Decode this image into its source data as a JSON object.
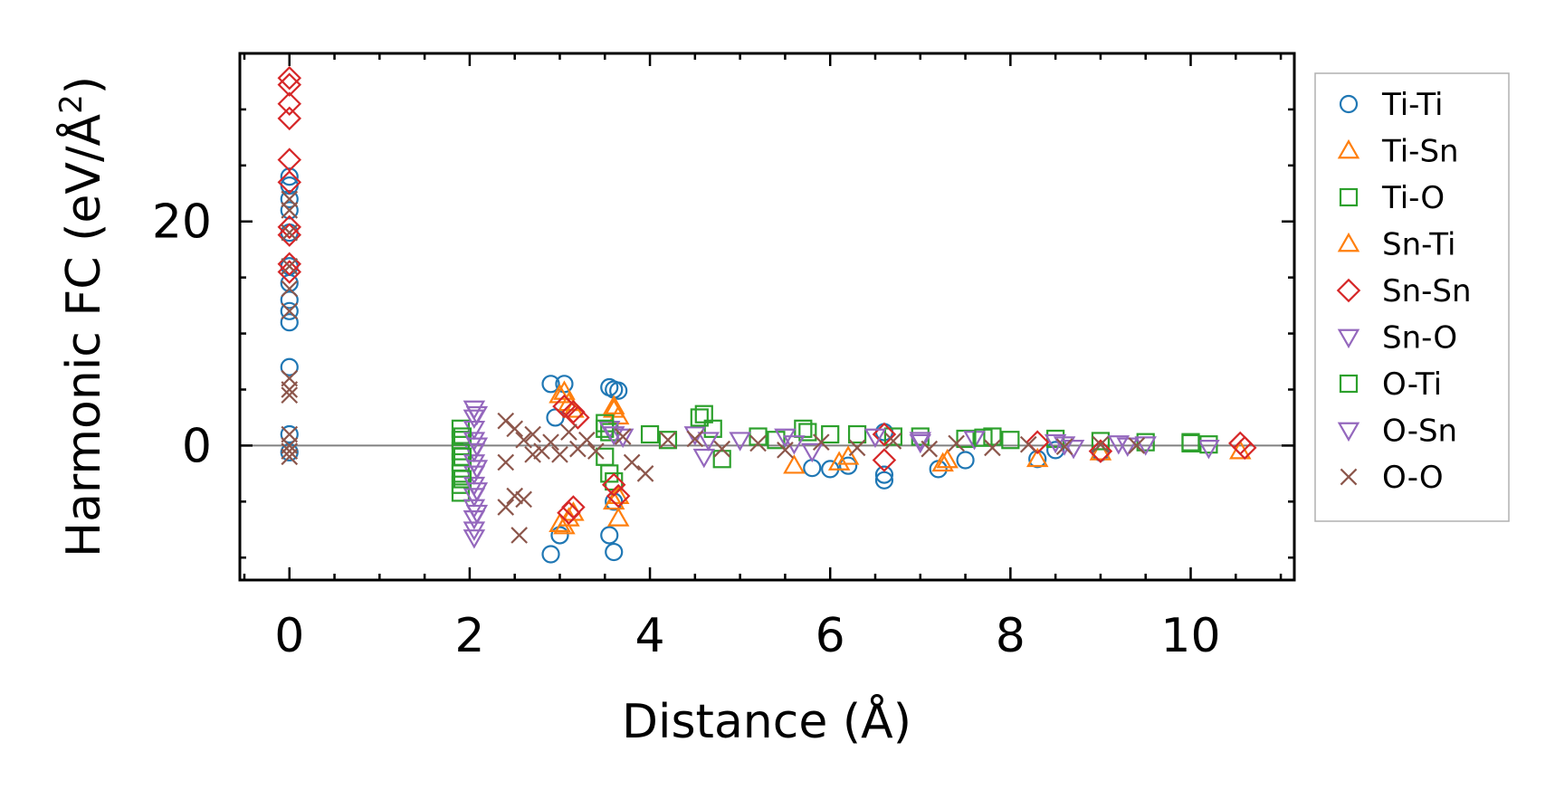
{
  "chart_data": {
    "type": "scatter",
    "title": "",
    "xlabel": "Distance (Å)",
    "ylabel_main": "Harmonic FC (eV/Å",
    "ylabel_sup": "2",
    "ylabel_close": ")",
    "xlim": [
      -0.55,
      11.15
    ],
    "ylim": [
      -12,
      35
    ],
    "xticks": [
      0,
      2,
      4,
      6,
      8,
      10
    ],
    "xtick_labels": [
      "0",
      "2",
      "4",
      "6",
      "8",
      "10"
    ],
    "yticks": [
      0,
      20
    ],
    "ytick_labels": [
      "0",
      "20"
    ],
    "grid": false,
    "zero_line": true,
    "legend_position": "outside-right",
    "series": [
      {
        "name": "Ti-Ti",
        "marker": "circle",
        "color": "#1f77b4",
        "points": [
          [
            0,
            24
          ],
          [
            0,
            23.2
          ],
          [
            0,
            22
          ],
          [
            0,
            21
          ],
          [
            0,
            19
          ],
          [
            0,
            16
          ],
          [
            0,
            14.5
          ],
          [
            0,
            13
          ],
          [
            0,
            12
          ],
          [
            0,
            11
          ],
          [
            0,
            7
          ],
          [
            0,
            1
          ],
          [
            0,
            -0.6
          ],
          [
            2.9,
            5.5
          ],
          [
            3.05,
            5.5
          ],
          [
            2.95,
            2.5
          ],
          [
            3.0,
            -8
          ],
          [
            2.9,
            -9.7
          ],
          [
            3.55,
            5.2
          ],
          [
            3.6,
            5.0
          ],
          [
            3.65,
            4.9
          ],
          [
            3.6,
            -5
          ],
          [
            3.55,
            -8
          ],
          [
            3.6,
            -9.5
          ],
          [
            5.8,
            -2
          ],
          [
            6.0,
            -2.1
          ],
          [
            6.2,
            -1.8
          ],
          [
            6.6,
            -2.6
          ],
          [
            6.6,
            -3.1
          ],
          [
            6.6,
            1.2
          ],
          [
            7.2,
            -2.1
          ],
          [
            7.5,
            -1.3
          ],
          [
            8.3,
            -1.2
          ],
          [
            8.5,
            -0.4
          ],
          [
            9.0,
            -0.6
          ]
        ]
      },
      {
        "name": "Ti-Sn",
        "marker": "triangle-up",
        "color": "#ff7f0e",
        "points": [
          [
            3.0,
            4.5
          ],
          [
            3.1,
            3.8
          ],
          [
            3.15,
            3.2
          ],
          [
            3.0,
            -7
          ],
          [
            3.1,
            -6.5
          ],
          [
            3.15,
            -6
          ],
          [
            3.6,
            3.2
          ],
          [
            3.65,
            2.6
          ],
          [
            3.6,
            -5
          ],
          [
            3.65,
            -6.5
          ],
          [
            5.6,
            -1.8
          ],
          [
            6.1,
            -1.5
          ],
          [
            7.25,
            -1.6
          ],
          [
            8.3,
            -1.2
          ],
          [
            9.0,
            -0.6
          ],
          [
            10.55,
            -0.5
          ]
        ]
      },
      {
        "name": "Ti-O",
        "marker": "square",
        "color": "#2ca02c",
        "points": [
          [
            1.9,
            1.5
          ],
          [
            1.9,
            0.5
          ],
          [
            1.9,
            -0.5
          ],
          [
            1.9,
            -1.5
          ],
          [
            1.9,
            -2.5
          ],
          [
            1.9,
            -3.5
          ],
          [
            1.9,
            -4.2
          ],
          [
            3.5,
            2.0
          ],
          [
            3.55,
            1.2
          ],
          [
            3.5,
            -1
          ],
          [
            3.55,
            -2.5
          ],
          [
            3.6,
            -3.2
          ],
          [
            4.0,
            1.0
          ],
          [
            4.2,
            0.5
          ],
          [
            4.6,
            2.8
          ],
          [
            4.7,
            1.5
          ],
          [
            4.8,
            -1.2
          ],
          [
            5.2,
            0.8
          ],
          [
            5.4,
            0.5
          ],
          [
            5.7,
            1.5
          ],
          [
            6.0,
            1.0
          ],
          [
            6.3,
            1.0
          ],
          [
            6.7,
            0.8
          ],
          [
            7.0,
            0.8
          ],
          [
            7.5,
            0.6
          ],
          [
            7.8,
            0.8
          ],
          [
            8.0,
            0.5
          ],
          [
            8.5,
            0.6
          ],
          [
            9.0,
            0.4
          ],
          [
            9.5,
            0.3
          ],
          [
            10.0,
            0.2
          ],
          [
            10.2,
            0.1
          ]
        ]
      },
      {
        "name": "Sn-Ti",
        "marker": "triangle-up",
        "color": "#ff7f0e",
        "points": [
          [
            3.05,
            4.8
          ],
          [
            3.6,
            3.5
          ],
          [
            3.65,
            -4.5
          ],
          [
            3.05,
            -7.2
          ],
          [
            6.2,
            -1.0
          ],
          [
            7.3,
            -1.3
          ]
        ]
      },
      {
        "name": "Sn-Sn",
        "marker": "diamond",
        "color": "#d62728",
        "points": [
          [
            0,
            32.8
          ],
          [
            0,
            32.2
          ],
          [
            0,
            30.5
          ],
          [
            0,
            29.2
          ],
          [
            0,
            25.5
          ],
          [
            0,
            23.5
          ],
          [
            0,
            19.5
          ],
          [
            0,
            18.8
          ],
          [
            0,
            16.2
          ],
          [
            0,
            15.5
          ],
          [
            3.05,
            3.5
          ],
          [
            3.15,
            3.0
          ],
          [
            3.2,
            2.5
          ],
          [
            3.1,
            -6.0
          ],
          [
            3.15,
            -5.5
          ],
          [
            3.6,
            -3.5
          ],
          [
            3.65,
            -4.5
          ],
          [
            6.6,
            1.0
          ],
          [
            6.6,
            -1.3
          ],
          [
            8.3,
            0.3
          ],
          [
            9.0,
            -0.5
          ],
          [
            10.55,
            0.2
          ],
          [
            10.6,
            -0.2
          ]
        ]
      },
      {
        "name": "Sn-O",
        "marker": "triangle-down",
        "color": "#9467bd",
        "points": [
          [
            2.05,
            3.3
          ],
          [
            2.05,
            2.5
          ],
          [
            2.05,
            1.5
          ],
          [
            2.05,
            0.5
          ],
          [
            2.05,
            -0.5
          ],
          [
            2.05,
            -1.5
          ],
          [
            2.05,
            -2.5
          ],
          [
            2.05,
            -3.5
          ],
          [
            2.05,
            -4.5
          ],
          [
            2.05,
            -5.5
          ],
          [
            2.05,
            -6.5
          ],
          [
            2.05,
            -7.5
          ],
          [
            2.05,
            -8.2
          ],
          [
            3.55,
            1.5
          ],
          [
            3.7,
            0.8
          ],
          [
            4.5,
            1.0
          ],
          [
            4.6,
            -1.0
          ],
          [
            5.0,
            0.5
          ],
          [
            5.5,
            0.8
          ],
          [
            5.8,
            -0.5
          ],
          [
            6.5,
            0.8
          ],
          [
            7.0,
            0.5
          ],
          [
            7.6,
            0.6
          ],
          [
            8.5,
            0.3
          ],
          [
            8.7,
            -0.2
          ],
          [
            9.2,
            0.2
          ],
          [
            9.5,
            0.1
          ],
          [
            10.2,
            -0.2
          ]
        ]
      },
      {
        "name": "O-Ti",
        "marker": "square",
        "color": "#2ca02c",
        "points": [
          [
            1.92,
            0.8
          ],
          [
            1.92,
            -1.0
          ],
          [
            1.92,
            -3.0
          ],
          [
            3.5,
            1.5
          ],
          [
            4.55,
            2.5
          ],
          [
            5.75,
            1.2
          ],
          [
            7.7,
            0.7
          ],
          [
            10.0,
            0.3
          ]
        ]
      },
      {
        "name": "O-Sn",
        "marker": "triangle-down",
        "color": "#9467bd",
        "points": [
          [
            2.08,
            2.8
          ],
          [
            2.08,
            0.0
          ],
          [
            2.08,
            -2.0
          ],
          [
            2.08,
            -4.0
          ],
          [
            2.08,
            -6.0
          ],
          [
            3.6,
            1.0
          ],
          [
            4.65,
            0.5
          ],
          [
            5.6,
            0.2
          ],
          [
            7.0,
            0.3
          ],
          [
            8.6,
            0.1
          ],
          [
            9.3,
            0.0
          ]
        ]
      },
      {
        "name": "O-O",
        "marker": "x",
        "color": "#8c564b",
        "points": [
          [
            0,
            22
          ],
          [
            0,
            21
          ],
          [
            0,
            19
          ],
          [
            0,
            16
          ],
          [
            0,
            14
          ],
          [
            0,
            12
          ],
          [
            0,
            6
          ],
          [
            0,
            5
          ],
          [
            0,
            4.5
          ],
          [
            0,
            1
          ],
          [
            0,
            0
          ],
          [
            0,
            -0.5
          ],
          [
            0,
            -1
          ],
          [
            2.4,
            2.2
          ],
          [
            2.5,
            1.5
          ],
          [
            2.6,
            0.5
          ],
          [
            2.7,
            1.0
          ],
          [
            2.8,
            -0.5
          ],
          [
            2.9,
            0.3
          ],
          [
            3.0,
            -0.8
          ],
          [
            3.1,
            1.2
          ],
          [
            3.2,
            -0.3
          ],
          [
            3.3,
            0.5
          ],
          [
            3.4,
            -0.5
          ],
          [
            2.4,
            -5.5
          ],
          [
            2.5,
            -4.5
          ],
          [
            2.6,
            -4.8
          ],
          [
            2.55,
            -8.0
          ],
          [
            2.4,
            -1.5
          ],
          [
            2.7,
            -0.8
          ],
          [
            3.8,
            -1.5
          ],
          [
            3.95,
            -2.5
          ],
          [
            3.7,
            0.8
          ],
          [
            4.2,
            0.5
          ],
          [
            4.5,
            0.6
          ],
          [
            4.8,
            -0.3
          ],
          [
            5.2,
            0.2
          ],
          [
            5.5,
            -0.4
          ],
          [
            5.9,
            0.3
          ],
          [
            6.3,
            -0.2
          ],
          [
            6.7,
            0.4
          ],
          [
            7.1,
            -0.3
          ],
          [
            7.4,
            0.2
          ],
          [
            7.8,
            -0.2
          ],
          [
            8.2,
            0.1
          ],
          [
            8.6,
            -0.1
          ],
          [
            9.0,
            0.1
          ],
          [
            9.4,
            0.0
          ]
        ]
      }
    ]
  }
}
